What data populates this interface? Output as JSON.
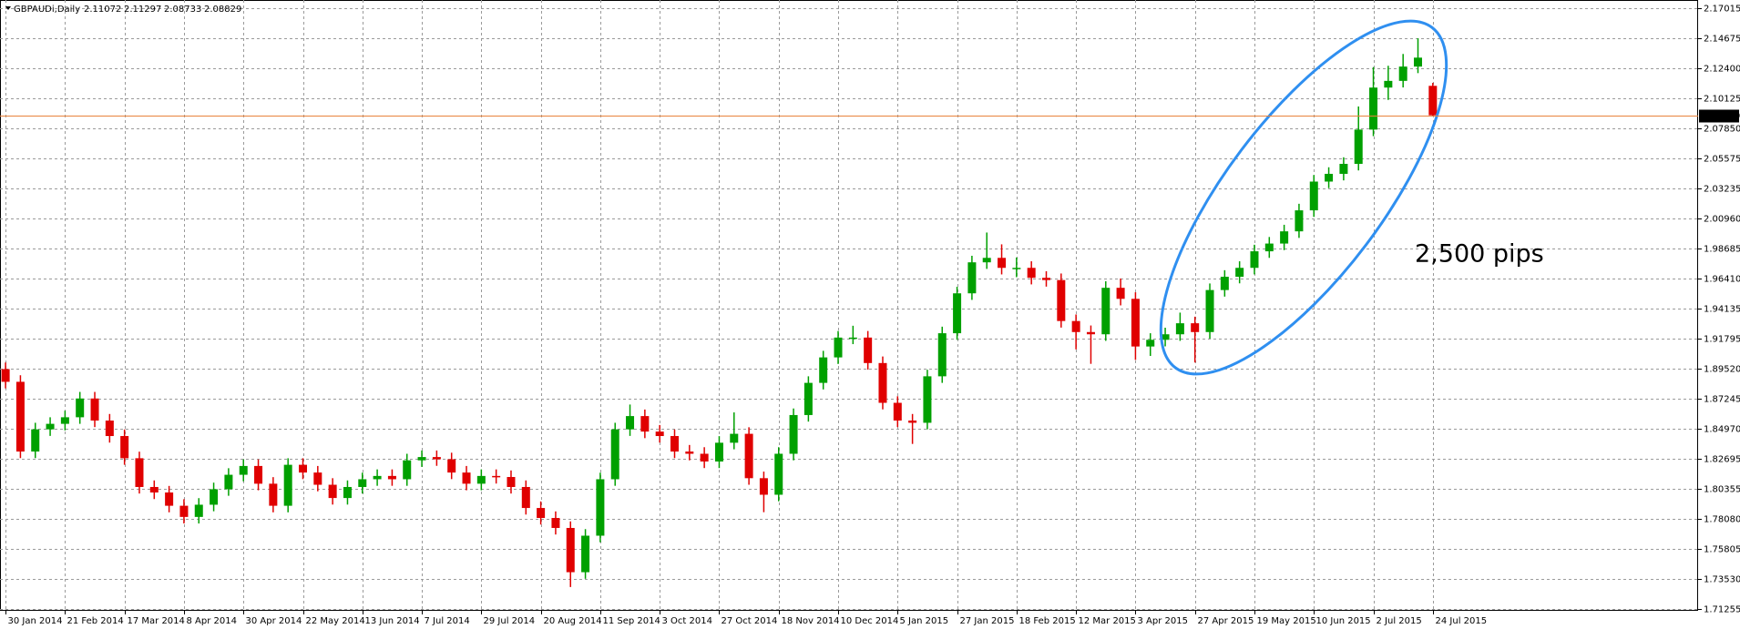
{
  "chart_data": {
    "type": "candlestick",
    "symbol": "GBPAUDi,Daily",
    "annotation": "2,500 pips",
    "annotation_color": "#1f3fd6",
    "up_color": "#00a000",
    "down_color": "#e00000",
    "last_price_color": "#e8823c",
    "grid": true,
    "ylim": [
      1.7109,
      2.1761
    ],
    "yticks": [
      2.17015,
      2.14675,
      {
        "value": 2.124,
        "label": "2.12400"
      },
      2.10125,
      {
        "value": 2.0785,
        "label": "2.07850"
      },
      2.05575,
      2.03235,
      {
        "value": 2.0096,
        "label": "2.00960"
      },
      1.98685,
      {
        "value": 1.9641,
        "label": "1.96410"
      },
      1.94135,
      1.91795,
      {
        "value": 1.8952,
        "label": "1.89520"
      },
      1.87245,
      {
        "value": 1.8497,
        "label": "1.84970"
      },
      1.82695,
      1.80355,
      {
        "value": 1.7808,
        "label": "1.78080"
      },
      1.75805,
      {
        "value": 1.7353,
        "label": "1.73530"
      },
      1.71255
    ],
    "categories": [
      "30 Jan 2014",
      null,
      null,
      null,
      "21 Feb 2014",
      null,
      null,
      null,
      "17 Mar 2014",
      null,
      null,
      null,
      "8 Apr 2014",
      null,
      null,
      null,
      "30 Apr 2014",
      null,
      null,
      null,
      "22 May 2014",
      null,
      null,
      null,
      "13 Jun 2014",
      null,
      null,
      null,
      "7 Jul 2014",
      null,
      null,
      null,
      "29 Jul 2014",
      null,
      null,
      null,
      "20 Aug 2014",
      null,
      null,
      null,
      "11 Sep 2014",
      null,
      null,
      null,
      "3 Oct 2014",
      null,
      null,
      null,
      "27 Oct 2014",
      null,
      null,
      null,
      "18 Nov 2014",
      null,
      null,
      null,
      "10 Dec 2014",
      null,
      null,
      null,
      "5 Jan 2015",
      null,
      null,
      null,
      "27 Jan 2015",
      null,
      null,
      null,
      "18 Feb 2015",
      null,
      null,
      null,
      "12 Mar 2015",
      null,
      null,
      null,
      "3 Apr 2015",
      null,
      null,
      null,
      "27 Apr 2015",
      null,
      null,
      null,
      "19 May 2015",
      null,
      null,
      null,
      "10 Jun 2015",
      null,
      null,
      null,
      "2 Jul 2015",
      null,
      null,
      null,
      "24 Jul 2015"
    ],
    "open": [
      1.895,
      1.8853,
      1.8322,
      1.8491,
      1.8533,
      1.8583,
      1.8726,
      1.8558,
      1.844,
      1.8271,
      1.8052,
      1.801,
      1.7909,
      1.7824,
      1.7917,
      1.8035,
      1.8145,
      1.8212,
      1.8077,
      1.7909,
      1.8221,
      1.8162,
      1.8069,
      1.7968,
      1.8052,
      1.8111,
      1.8136,
      1.8111,
      1.8255,
      1.828,
      1.8263,
      1.8162,
      1.8077,
      1.8136,
      1.8128,
      1.8052,
      1.7892,
      1.7816,
      1.774,
      1.7403,
      1.7681,
      1.8111,
      1.8491,
      1.8592,
      1.8474,
      1.844,
      1.8322,
      1.8305,
      1.8246,
      1.8389,
      1.8457,
      1.8119,
      1.7993,
      1.8305,
      1.86,
      1.8845,
      1.9039,
      1.919,
      1.919,
      1.8996,
      1.8693,
      1.8558,
      1.8541,
      1.8895,
      1.9223,
      1.9527,
      1.9763,
      1.9797,
      1.9721,
      1.9721,
      1.9645,
      1.9628,
      1.9316,
      1.9232,
      1.9215,
      1.9569,
      1.9485,
      1.9122,
      1.9173,
      1.9215,
      1.9299,
      1.9232,
      1.9552,
      1.9653,
      1.9721,
      1.9847,
      1.9906,
      1.9999,
      2.0159,
      2.0378,
      2.0437,
      2.0513,
      2.0774,
      2.1094,
      2.1145,
      2.1254,
      2.11072
    ],
    "high": [
      1.9,
      1.8903,
      1.8541,
      1.8583,
      1.8633,
      1.8776,
      1.8776,
      1.8608,
      1.849,
      1.8321,
      1.8102,
      1.806,
      1.7959,
      1.7967,
      1.8085,
      1.8195,
      1.8262,
      1.8262,
      1.8127,
      1.8271,
      1.8271,
      1.8212,
      1.8119,
      1.8102,
      1.8161,
      1.8186,
      1.8186,
      1.8305,
      1.833,
      1.833,
      1.8313,
      1.8212,
      1.8186,
      1.8186,
      1.8178,
      1.8102,
      1.7942,
      1.7866,
      1.779,
      1.7731,
      1.8161,
      1.8541,
      1.868,
      1.8642,
      1.8524,
      1.849,
      1.8372,
      1.8355,
      1.8439,
      1.862,
      1.8507,
      1.8169,
      1.8355,
      1.865,
      1.8895,
      1.9089,
      1.924,
      1.928,
      1.924,
      1.9046,
      1.8743,
      1.8608,
      1.8945,
      1.9273,
      1.9577,
      1.9813,
      1.999,
      1.99,
      1.98,
      1.9771,
      1.9695,
      1.9678,
      1.9366,
      1.9282,
      1.9619,
      1.964,
      1.9535,
      1.9223,
      1.9265,
      1.938,
      1.9349,
      1.9602,
      1.9703,
      1.9771,
      1.9897,
      1.9956,
      2.0049,
      2.0209,
      2.0428,
      2.0487,
      2.0563,
      2.095,
      2.125,
      2.126,
      2.135,
      2.147,
      2.11297
    ],
    "low": [
      1.8803,
      1.8272,
      1.8272,
      1.8441,
      1.8483,
      1.8533,
      1.8508,
      1.839,
      1.8221,
      1.8002,
      1.796,
      1.7859,
      1.7774,
      1.7774,
      1.7867,
      1.7985,
      1.8095,
      1.8027,
      1.7859,
      1.7859,
      1.8112,
      1.8019,
      1.7918,
      1.7918,
      1.8002,
      1.8061,
      1.8061,
      1.8061,
      1.8205,
      1.8213,
      1.8112,
      1.8027,
      1.8027,
      1.8078,
      1.8002,
      1.7842,
      1.7766,
      1.769,
      1.729,
      1.7353,
      1.7631,
      1.8061,
      1.8441,
      1.8424,
      1.839,
      1.8272,
      1.8255,
      1.8196,
      1.8196,
      1.8339,
      1.8069,
      1.786,
      1.7943,
      1.8255,
      1.855,
      1.8795,
      1.8989,
      1.914,
      1.8946,
      1.8643,
      1.8508,
      1.838,
      1.8491,
      1.8845,
      1.9173,
      1.9477,
      1.9713,
      1.9671,
      1.965,
      1.9595,
      1.9578,
      1.9266,
      1.91,
      1.899,
      1.9165,
      1.9435,
      1.902,
      1.905,
      1.9123,
      1.9165,
      1.9,
      1.9182,
      1.9502,
      1.9603,
      1.9671,
      1.9797,
      1.9856,
      1.9949,
      2.0109,
      2.0328,
      2.0387,
      2.0463,
      2.0724,
      2.1,
      2.1095,
      2.1204,
      2.08733
    ],
    "close": [
      1.8853,
      1.8322,
      1.8491,
      1.8533,
      1.8583,
      1.8726,
      1.8558,
      1.844,
      1.8271,
      1.8052,
      1.801,
      1.7909,
      1.7824,
      1.7917,
      1.8035,
      1.8145,
      1.8212,
      1.8077,
      1.7909,
      1.8221,
      1.8162,
      1.8069,
      1.7968,
      1.8052,
      1.8111,
      1.8136,
      1.8111,
      1.8255,
      1.828,
      1.8263,
      1.8162,
      1.8077,
      1.8136,
      1.8128,
      1.8052,
      1.7892,
      1.7816,
      1.774,
      1.7403,
      1.7681,
      1.8111,
      1.8491,
      1.8592,
      1.8474,
      1.844,
      1.8322,
      1.8305,
      1.8246,
      1.8389,
      1.8457,
      1.8119,
      1.7993,
      1.8305,
      1.86,
      1.8845,
      1.9039,
      1.919,
      1.919,
      1.8996,
      1.8693,
      1.8558,
      1.8541,
      1.8895,
      1.9223,
      1.9527,
      1.9763,
      1.9797,
      1.9721,
      1.9721,
      1.9645,
      1.9628,
      1.9316,
      1.9232,
      1.9215,
      1.9569,
      1.9485,
      1.9122,
      1.9173,
      1.9215,
      1.9299,
      1.9232,
      1.9552,
      1.9653,
      1.9721,
      1.9847,
      1.9906,
      1.9999,
      2.0159,
      2.0378,
      2.0437,
      2.0513,
      2.0774,
      2.1094,
      2.1145,
      2.1254,
      2.1322,
      2.08829
    ]
  }
}
